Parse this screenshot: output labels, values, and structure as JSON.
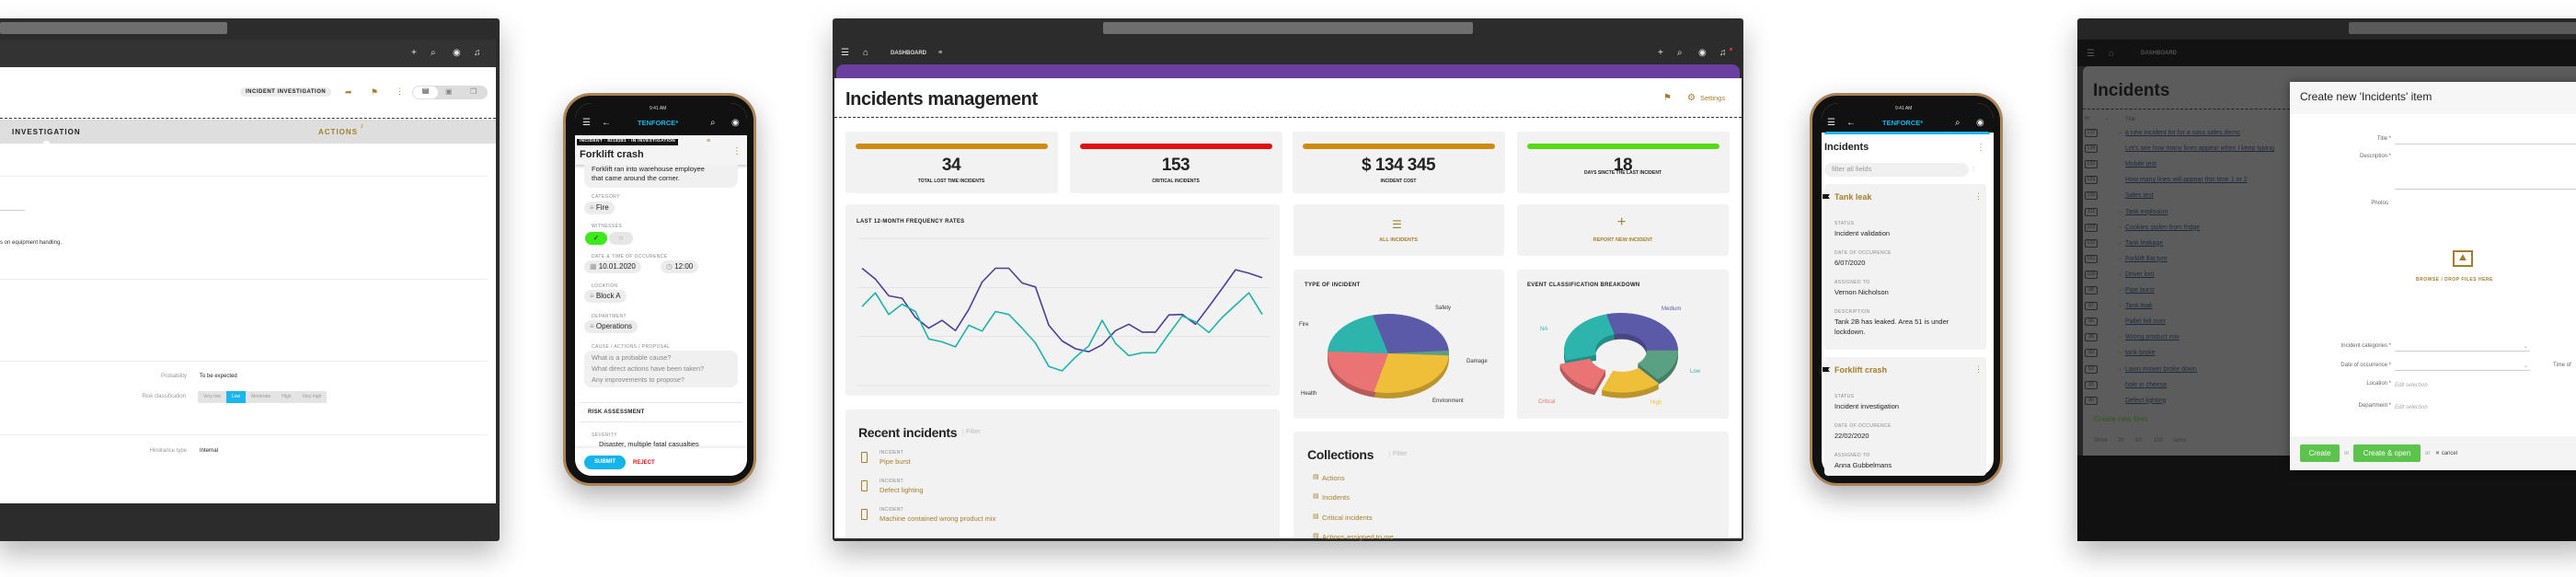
{
  "laptop_left": {
    "nav_icons": [
      "plus-icon",
      "search-icon",
      "user-icon",
      "bell-icon"
    ],
    "record_type_badge": "INCIDENT INVESTIGATION",
    "tabs": [
      {
        "label": "INVESTIGATION",
        "active": true
      },
      {
        "label": "ACTIONS",
        "count": "2"
      }
    ],
    "text_fragment": "s on equipment handling.",
    "probability_label": "Probability",
    "probability_value": "To be expected",
    "risk_label": "Risk classification",
    "risk_options": [
      "Very low",
      "Low",
      "Moderate",
      "High",
      "Very high"
    ],
    "risk_selected": "Low",
    "hindrance_label": "Hindrance type",
    "hindrance_value": "Internal",
    "accent": "#1ab7ea"
  },
  "phone_left": {
    "time": "9:41 AM",
    "brand": "TENFORCE*",
    "record_header": "INCIDENT · 8218281 · IN INVESTIGATION",
    "title": "Forklift crash",
    "description_line1": "Forklift ran into warehouse employee",
    "description_line2": "that came around the corner.",
    "category_label": "CATEGORY",
    "category_value": "Fire",
    "witnesses_label": "WITNESSES",
    "witnesses_value": true,
    "datetime_label": "DATE & TIME OF OCCURENCE",
    "date_value": "10.01.2020",
    "time_value": "12:00",
    "location_label": "LOCATION",
    "location_value": "Block A",
    "department_label": "DEPARTMENT",
    "department_value": "Operations",
    "cause_label": "CAUSE / ACTIONS / PROPOSAL",
    "cause_placeholder_1": "What is a probable cause?",
    "cause_placeholder_2": "What direct actions have been taken?",
    "cause_placeholder_3": "Any improvements to propose?",
    "risk_section": "RISK ASSESSMENT",
    "severity_label": "SEVERITY",
    "severity_value": "Disaster, multiple fatal casualties",
    "submit": "SUBMIT",
    "reject": "REJECT"
  },
  "dashboard": {
    "breadcrumb": "DASHBOARD",
    "title": "Incidents management",
    "settings": "Settings",
    "accent_bar": "#6a3fa0",
    "kpis": [
      {
        "value": "34",
        "label": "TOTAL LOST TIME INCIDENTS",
        "color": "#cf8a12"
      },
      {
        "value": "153",
        "label": "CRITICAL INCIDENTS",
        "color": "#e0100e"
      },
      {
        "value": "$ 134 345",
        "label": "INCIDENT COST",
        "color": "#cf8a12"
      },
      {
        "value": "18",
        "label": "DAYS SINCTE THE LAST INCIDENT",
        "color": "#57d916"
      }
    ],
    "chart_title": "LAST 12-MONTH FREQUENCY RATES",
    "all_incidents": "ALL INCIDENTS",
    "report_new": "REPORT NEW INCIDENT",
    "type_title": "TYPE OF INCIDENT",
    "event_title": "EVENT CLASSIFICATION BREAKDOWN",
    "recent_title": "Recent incidents",
    "recent_filter": "Filter",
    "recent_items": [
      {
        "type": "INCIDENT",
        "title": "Pipe burst"
      },
      {
        "type": "INCIDENT",
        "title": "Defect lighting"
      },
      {
        "type": "INCIDENT",
        "title": "Machine contained wrong product mix"
      }
    ],
    "collections_title": "Collections",
    "collections_filter": "Filter",
    "collections": [
      "Actions",
      "Incidents",
      "Critical incidents",
      "Actions assigned to me"
    ]
  },
  "phone_right": {
    "time": "9:41 AM",
    "brand": "TENFORCE*",
    "title": "Incidents",
    "filter_placeholder": "filter all fields",
    "cards": [
      {
        "title": "Tank leak",
        "status_label": "STATUS",
        "status": "Incident validation",
        "date_label": "DATE OF OCCURENCE",
        "date": "6/07/2020",
        "assigned_label": "ASSIGNED TO",
        "assigned": "Vernon Nicholson",
        "description_label": "DESCRIPTION",
        "description_1": "Tank 2B has leaked. Area 51 is under",
        "description_2": "lockdown."
      },
      {
        "title": "Forklift crash",
        "status_label": "STATUS",
        "status": "Incident investigation",
        "date_label": "DATE OF OCCURENCE",
        "date": "22/02/2020",
        "assigned_label": "ASSIGNED TO",
        "assigned": "Anna Gubbelmans"
      }
    ]
  },
  "laptop_right": {
    "breadcrumb": "DASHBOARD",
    "list_title": "Incidents",
    "col_nr": "Nr",
    "col_title": "Title",
    "rows": [
      {
        "nr": "137",
        "title": "a new incident for for a sass sales demo",
        "child": true
      },
      {
        "nr": "134",
        "title": "Let's see how many lines appear when I keep typing",
        "child": false
      },
      {
        "nr": "132",
        "title": "Mobile test",
        "child": false
      },
      {
        "nr": "131",
        "title": "How many lines will appear this time 1 or 2",
        "child": false
      },
      {
        "nr": "130",
        "title": "Sales test",
        "child": false
      },
      {
        "nr": "111",
        "title": "Tank explosion",
        "child": true
      },
      {
        "nr": "103",
        "title": "Cookies stolen from fridge",
        "child": true
      },
      {
        "nr": "102",
        "title": "Tank leakage",
        "child": true
      },
      {
        "nr": "101",
        "title": "Forklift flat tyre",
        "child": true
      },
      {
        "nr": "100",
        "title": "Driver lost",
        "child": true
      },
      {
        "nr": "98",
        "title": "Pipe burst",
        "child": true
      },
      {
        "nr": "97",
        "title": "Tank leak",
        "child": true
      },
      {
        "nr": "96",
        "title": "Pallet fell over",
        "child": false
      },
      {
        "nr": "95",
        "title": "Wrong product mix",
        "child": true
      },
      {
        "nr": "93",
        "title": "tank broke",
        "child": true
      },
      {
        "nr": "92",
        "title": "Lawn mower broke down",
        "child": true
      },
      {
        "nr": "91",
        "title": "hole in cheese",
        "child": false
      },
      {
        "nr": "90",
        "title": "Defect lighting",
        "child": false
      }
    ],
    "create_new": "Create new item",
    "show": "Show",
    "page_sizes": [
      "20",
      "50",
      "100"
    ],
    "items": "items",
    "modal": {
      "title": "Create new 'Incidents' item",
      "title_label": "Title *",
      "description_label": "Description *",
      "photos_label": "Photos",
      "upload": "BROWSE / DROP FILES HERE",
      "categories_label": "Incident categories *",
      "date_label": "Date of occurrence *",
      "time_label": "Time of",
      "location_label": "Location *",
      "location_value": "Edit selection",
      "department_label": "Department *",
      "department_value": "Edit selection",
      "create": "Create",
      "or1": "or",
      "create_open": "Create & open",
      "or2": "or",
      "cancel": "✕ cancel",
      "button_color": "#5cc34c"
    }
  },
  "chart_data": [
    {
      "type": "line",
      "title": "LAST 12-MONTH FREQUENCY RATES",
      "grid": true,
      "legend": "none",
      "xlabel": "",
      "ylabel": "",
      "ylim": [
        0,
        3
      ],
      "series": [
        {
          "color": "#4b3f99",
          "values": [
            2.39,
            2.17,
            1.83,
            1.78,
            1.39,
            1.17,
            1.33,
            1.12,
            1.55,
            2.11,
            2.39,
            2.39,
            2.09,
            2.01,
            1.23,
            0.91,
            0.75,
            0.69,
            0.83,
            1.12,
            1.25,
            1.09,
            1.09,
            1.44,
            1.45,
            1.25,
            1.61,
            1.98,
            2.36,
            2.29,
            2.2
          ]
        },
        {
          "color": "#1eb3a8",
          "values": [
            1.61,
            1.89,
            1.45,
            1.66,
            1.51,
            0.95,
            0.89,
            0.79,
            1.23,
            1.11,
            1.51,
            1.45,
            1.17,
            0.87,
            0.39,
            0.3,
            0.58,
            0.81,
            1.33,
            0.86,
            0.61,
            0.67,
            0.67,
            1.05,
            1.42,
            1.3,
            1.08,
            1.39,
            1.64,
            1.89,
            1.45
          ]
        }
      ]
    },
    {
      "type": "pie",
      "title": "TYPE OF INCIDENT",
      "categories": [
        "Safety",
        "Damage",
        "Environment",
        "Health",
        "Fire"
      ],
      "values": [
        28,
        2,
        28,
        22,
        20
      ],
      "colors": [
        "#5b5aa8",
        "#5aa184",
        "#f0bf3a",
        "#ea7473",
        "#2db5ad"
      ]
    },
    {
      "type": "pie",
      "title": "EVENT CLASSIFICATION BREAKDOWN",
      "donut": true,
      "categories": [
        "Medium",
        "Low",
        "High",
        "Critical",
        "NA"
      ],
      "values": [
        29,
        14,
        17,
        15,
        25
      ],
      "colors": [
        "#5b5aa8",
        "#5aa184",
        "#f0bf3a",
        "#ea7473",
        "#2db5ad"
      ]
    }
  ]
}
